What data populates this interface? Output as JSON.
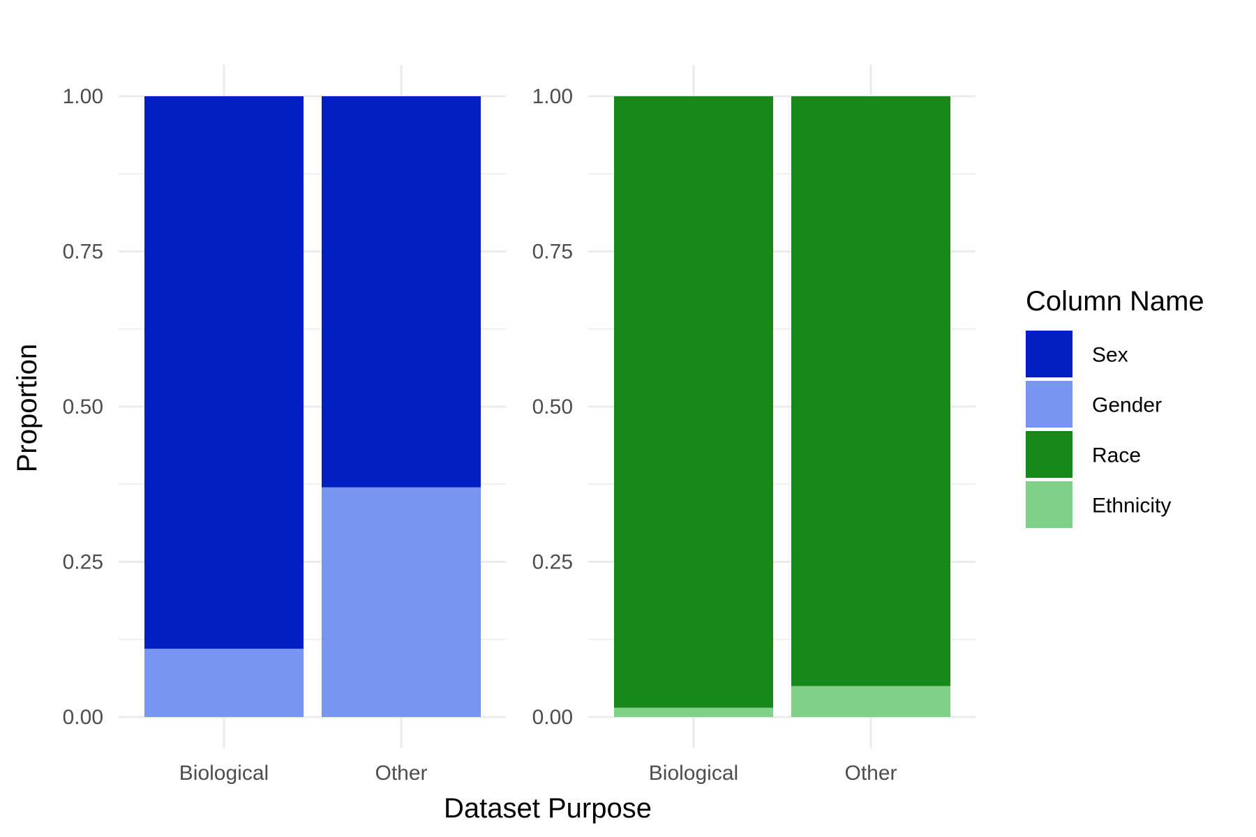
{
  "chart_data": {
    "type": "bar",
    "stacked": true,
    "xlabel": "Dataset Purpose",
    "ylabel": "Proportion",
    "ylim": [
      0,
      1
    ],
    "yticks": [
      "0.00",
      "0.25",
      "0.50",
      "0.75",
      "1.00"
    ],
    "grid": true,
    "legend": {
      "title": "Column Name",
      "placement": "right",
      "entries": [
        {
          "name": "Sex",
          "color": "#0020c2"
        },
        {
          "name": "Gender",
          "color": "#7995f2"
        },
        {
          "name": "Race",
          "color": "#168819"
        },
        {
          "name": "Ethnicity",
          "color": "#7fd189"
        }
      ]
    },
    "panels": [
      {
        "categories": [
          "Biological",
          "Other"
        ],
        "series": [
          {
            "name": "Gender",
            "color": "#7995f2",
            "values": [
              0.11,
              0.37
            ]
          },
          {
            "name": "Sex",
            "color": "#0020c2",
            "values": [
              0.89,
              0.63
            ]
          }
        ]
      },
      {
        "categories": [
          "Biological",
          "Other"
        ],
        "series": [
          {
            "name": "Ethnicity",
            "color": "#7fd189",
            "values": [
              0.015,
              0.05
            ]
          },
          {
            "name": "Race",
            "color": "#168819",
            "values": [
              0.985,
              0.95
            ]
          }
        ]
      }
    ]
  }
}
